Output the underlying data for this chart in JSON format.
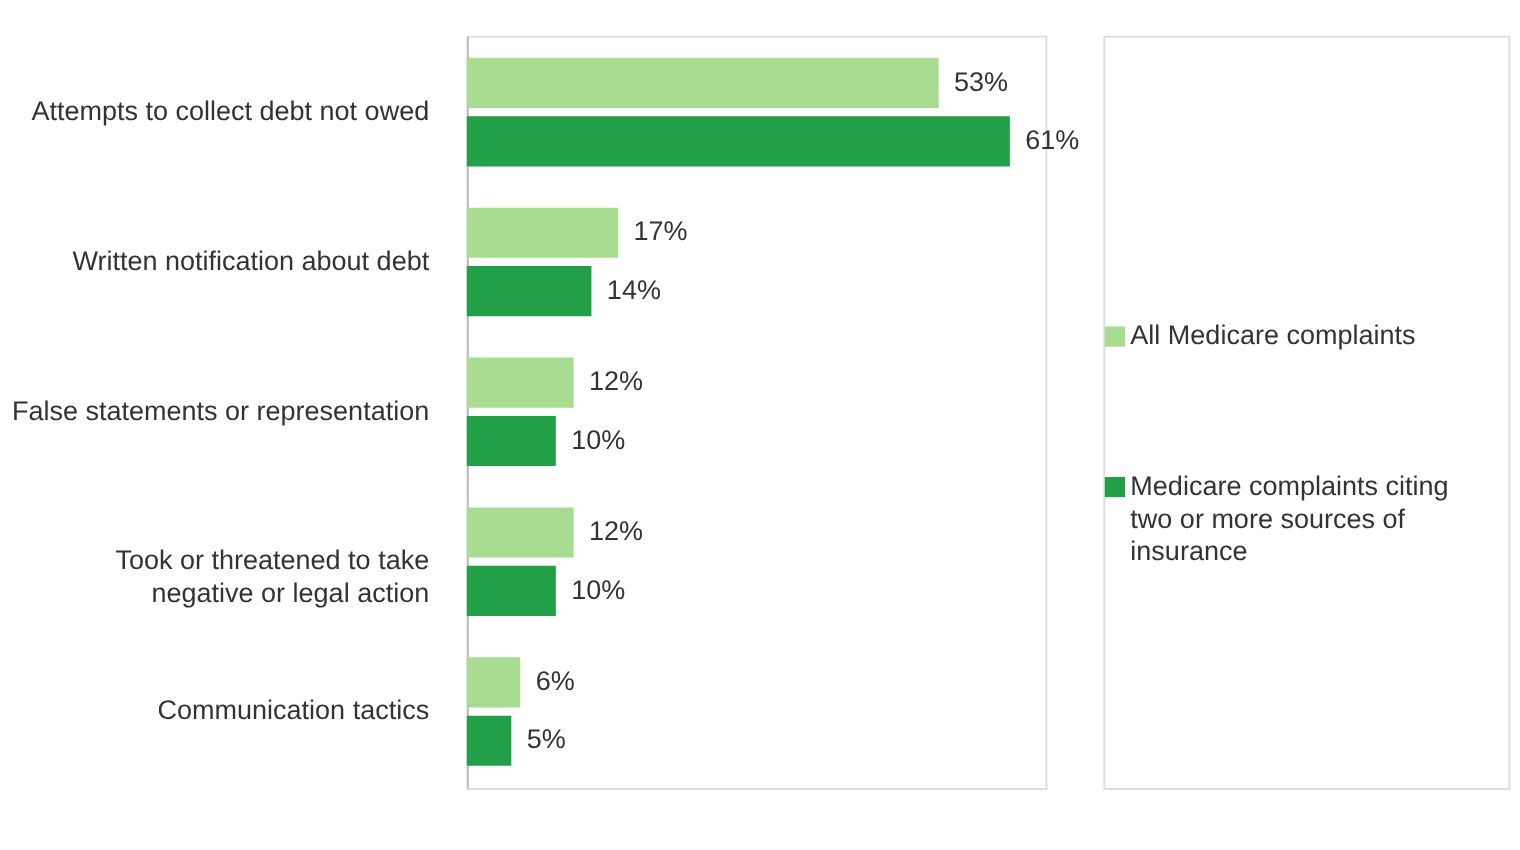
{
  "chart_data": {
    "type": "bar",
    "orientation": "horizontal",
    "legend": "right",
    "categories": [
      "Attempts to collect debt not owed",
      "Written notification about debt",
      "False statements or representation",
      "Took or threatened to take negative or legal action",
      "Communication tactics"
    ],
    "series": [
      {
        "name": "All Medicare complaints",
        "color": "#a8dd91",
        "values": [
          53,
          17,
          12,
          12,
          6
        ],
        "value_labels": [
          "53%",
          "17%",
          "12%",
          "12%",
          "6%"
        ]
      },
      {
        "name": "Medicare complaints citing two or more sources of insurance",
        "color": "#21a047",
        "values": [
          61,
          14,
          10,
          10,
          5
        ],
        "value_labels": [
          "61%",
          "14%",
          "10%",
          "10%",
          "5%"
        ]
      }
    ]
  }
}
